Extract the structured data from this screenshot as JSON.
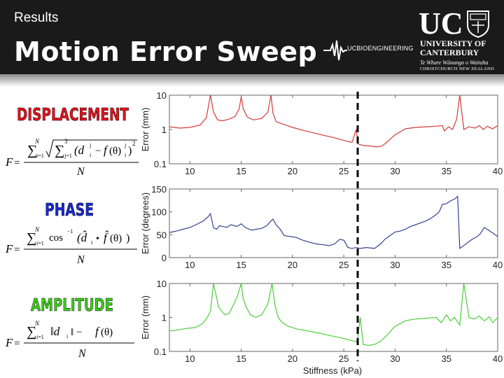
{
  "header": {
    "section": "Results",
    "title": "Motion Error Sweep",
    "dept_logo_text": "UCBIOENGINEERING",
    "uc_logo": {
      "letters": "UC",
      "line1": "UNIVERSITY OF",
      "line2": "CANTERBURY",
      "maori": "Te Whare Wānanga o Waitaha",
      "city": "CHRISTCHURCH NEW ZEALAND"
    }
  },
  "metrics": [
    {
      "label": "DISPLACEMENT",
      "color": "#e8101c"
    },
    {
      "label": "PHASE",
      "color": "#1a2ad2"
    },
    {
      "label": "AMPLITUDE",
      "color": "#3ad018"
    }
  ],
  "colors": {
    "header_bg": "#1a1a1a",
    "marker": "#000000"
  },
  "chart_data": [
    {
      "type": "line",
      "ylabel": "Error (mm)",
      "yscale": "log",
      "ylim": [
        0.1,
        10
      ],
      "xlim": [
        8,
        40
      ],
      "xticks": [
        10,
        15,
        20,
        25,
        30,
        35,
        40
      ],
      "yticks": [
        "10",
        "1",
        "0.1"
      ],
      "series": [
        {
          "color": "#d43a3a",
          "x": [
            8,
            9,
            10,
            11,
            11.6,
            12,
            12.3,
            12.7,
            13.2,
            13.8,
            14.4,
            14.8,
            15,
            15.2,
            15.6,
            16.2,
            17,
            17.6,
            17.9,
            18.1,
            18.4,
            18.9,
            19.5,
            20,
            21,
            22,
            23,
            24,
            25,
            25.8,
            26.2,
            26.4,
            26.6,
            27,
            27.6,
            28.2,
            28.6,
            29,
            30,
            31,
            32,
            33,
            34,
            34.6,
            34.8,
            35.2,
            35.6,
            36,
            36.3,
            36.7,
            37.2,
            37.8,
            38.2,
            38.6,
            39,
            39.5,
            40
          ],
          "y": [
            1.2,
            1.1,
            1.15,
            1.35,
            2.2,
            10,
            3.2,
            1.9,
            1.8,
            2.0,
            2.4,
            4.0,
            9.0,
            4.0,
            2.3,
            1.9,
            2.1,
            3.2,
            10,
            3.0,
            1.7,
            1.5,
            1.3,
            1.15,
            0.95,
            0.8,
            0.68,
            0.58,
            0.48,
            0.42,
            1.0,
            0.38,
            0.36,
            0.34,
            0.33,
            0.31,
            0.32,
            0.38,
            0.7,
            1.05,
            1.15,
            1.2,
            1.25,
            1.3,
            0.9,
            1.2,
            1.0,
            2.0,
            10,
            1.0,
            1.2,
            1.1,
            1.3,
            1.0,
            1.25,
            1.05,
            1.3
          ]
        }
      ]
    },
    {
      "type": "line",
      "ylabel": "Error (degrees)",
      "ylim": [
        0,
        150
      ],
      "xlim": [
        8,
        40
      ],
      "xticks": [
        10,
        15,
        20,
        25,
        30,
        35,
        40
      ],
      "yticks": [
        "150",
        "100",
        "50",
        "0"
      ],
      "series": [
        {
          "color": "#34418f",
          "x": [
            8,
            8.7,
            9.3,
            10,
            10.6,
            11.3,
            11.8,
            12,
            12.3,
            12.6,
            12.9,
            13.2,
            13.6,
            14,
            14.6,
            15,
            15.4,
            16,
            16.5,
            17,
            17.5,
            17.9,
            18.1,
            18.4,
            18.8,
            19.2,
            19.8,
            20.4,
            21,
            21.6,
            22.3,
            23,
            23.6,
            24.1,
            24.6,
            25,
            25.4,
            25.8,
            26.2,
            26.6,
            27.2,
            28,
            28.6,
            29,
            29.5,
            30,
            30.5,
            31,
            31.5,
            32,
            32.5,
            33,
            33.5,
            34,
            34.3,
            34.6,
            35,
            35.4,
            35.8,
            36.1,
            36.3,
            36.8,
            37.5,
            38,
            38.3,
            38.7,
            39.1,
            39.5,
            40
          ],
          "y": [
            55,
            58,
            62,
            66,
            72,
            80,
            90,
            96,
            65,
            62,
            70,
            68,
            66,
            72,
            68,
            74,
            66,
            60,
            62,
            64,
            70,
            80,
            84,
            72,
            62,
            48,
            46,
            44,
            38,
            34,
            30,
            28,
            26,
            30,
            40,
            38,
            22,
            20,
            22,
            20,
            22,
            20,
            30,
            40,
            48,
            56,
            58,
            62,
            68,
            72,
            76,
            80,
            86,
            94,
            100,
            116,
            118,
            124,
            128,
            134,
            20,
            28,
            40,
            46,
            52,
            66,
            60,
            54,
            46
          ]
        }
      ]
    },
    {
      "type": "line",
      "ylabel": "Error (mm)",
      "xlabel": "Stiffness (kPa)",
      "yscale": "log",
      "ylim": [
        0.1,
        10
      ],
      "xlim": [
        8,
        40
      ],
      "xticks": [
        10,
        15,
        20,
        25,
        30,
        35,
        40
      ],
      "yticks": [
        "10",
        "1",
        "0.1"
      ],
      "series": [
        {
          "color": "#4ccd3a",
          "x": [
            8,
            8.6,
            9.2,
            9.8,
            10.4,
            10.8,
            11.2,
            11.6,
            12,
            12.3,
            12.8,
            13.4,
            13.8,
            14.2,
            14.6,
            15,
            15.2,
            15.5,
            15.9,
            16.4,
            17,
            17.6,
            18,
            18.3,
            18.6,
            19,
            19.6,
            20.5,
            21.5,
            22.5,
            23.5,
            24.5,
            25.5,
            26.3,
            26.6,
            26.9,
            27.4,
            28,
            28.6,
            29.2,
            30,
            31,
            32,
            33,
            34,
            34.5,
            35,
            35.4,
            35.8,
            36.3,
            36.7,
            37.2,
            37.7,
            38.2,
            38.7,
            39.2,
            39.5,
            40
          ],
          "y": [
            0.4,
            0.42,
            0.45,
            0.48,
            0.5,
            0.55,
            0.65,
            0.9,
            1.5,
            10,
            2.0,
            1.2,
            1.3,
            2.2,
            4.0,
            10,
            3.5,
            2.0,
            1.2,
            1.0,
            1.2,
            2.5,
            10,
            2.2,
            1.0,
            0.7,
            0.55,
            0.45,
            0.4,
            0.35,
            0.3,
            0.26,
            0.22,
            0.19,
            1.0,
            0.16,
            0.15,
            0.16,
            0.2,
            0.3,
            0.55,
            0.8,
            0.9,
            0.95,
            1.0,
            0.7,
            1.2,
            0.8,
            1.0,
            0.6,
            10,
            1.0,
            0.9,
            1.1,
            0.8,
            1.05,
            0.7,
            1.0
          ]
        }
      ]
    }
  ],
  "formulas": [
    {
      "lhs": "F",
      "sum_outer": "∑",
      "sum_inner": "∑",
      "outer_top": "N",
      "outer_bottom": "i=1",
      "inner_top": "3",
      "inner_bottom": "j=1",
      "body": "(d",
      "body_sub": "i",
      "body_sup": "j",
      "minus": "−",
      "f": "f",
      "theta": "(θ)",
      "sub": "i",
      "sup": "j",
      "square": "2",
      "close": ")",
      "denominator": "N"
    },
    {
      "lhs": "F",
      "sum": "∑",
      "top": "N",
      "bottom": "i=1",
      "func": "cos",
      "sup": "−1",
      "body": "(d̂",
      "sub_i": "i",
      "dot": "•",
      "fhat": "f̂",
      "theta": "(θ)",
      "close": ")",
      "denominator": "N"
    },
    {
      "lhs": "F",
      "sum": "∑",
      "top": "N",
      "bottom": "i=1",
      "body": "‖d",
      "sub_i": "i",
      "mid": "‖ − ",
      "f": "f",
      "theta": "(θ)",
      "close": "",
      "denominator": "N"
    }
  ]
}
